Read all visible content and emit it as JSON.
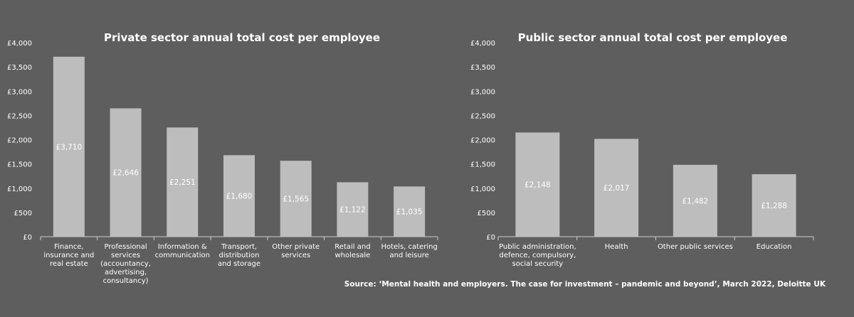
{
  "chart_data": [
    {
      "type": "bar",
      "title": "Private sector annual total cost per employee",
      "categories": [
        "Finance, insurance and real estate",
        "Professional services (accountancy, advertising, consultancy)",
        "Information & communication",
        "Transport, distribution and storage",
        "Other private services",
        "Retail and wholesale",
        "Hotels, catering and leisure"
      ],
      "category_lines": [
        [
          "Finance,",
          "insurance and",
          "real estate"
        ],
        [
          "Professional",
          "services",
          "(accountancy,",
          "advertising,",
          "consultancy)"
        ],
        [
          "Information &",
          "communication"
        ],
        [
          "Transport,",
          "distribution",
          "and storage"
        ],
        [
          "Other private",
          "services"
        ],
        [
          "Retail and",
          "wholesale"
        ],
        [
          "Hotels, catering",
          "and leisure"
        ]
      ],
      "values": [
        3710,
        2646,
        2251,
        1680,
        1565,
        1122,
        1035
      ],
      "data_labels": [
        "£3,710",
        "£2,646",
        "£2,251",
        "£1,680",
        "£1,565",
        "£1,122",
        "£1,035"
      ],
      "yticks": [
        "£0",
        "£500",
        "£1,000",
        "£1,500",
        "£2,000",
        "£2,500",
        "£3,000",
        "£3,500",
        "£4,000"
      ],
      "ylim": [
        0,
        4000
      ],
      "xlabel": "",
      "ylabel": "",
      "grid": false,
      "bar_color": "#bdbdbd"
    },
    {
      "type": "bar",
      "title": "Public sector annual total cost per employee",
      "categories": [
        "Public administration, defence, compulsory, social security",
        "Health",
        "Other public services",
        "Education"
      ],
      "category_lines": [
        [
          "Public administration,",
          "defence, compulsory,",
          "social security"
        ],
        [
          "Health"
        ],
        [
          "Other public services"
        ],
        [
          "Education"
        ]
      ],
      "values": [
        2148,
        2017,
        1482,
        1288
      ],
      "data_labels": [
        "£2,148",
        "£2,017",
        "£1,482",
        "£1,288"
      ],
      "yticks": [
        "£0",
        "£500",
        "£1,000",
        "£1,500",
        "£2,000",
        "£2,500",
        "£3,000",
        "£3,500",
        "£4,000"
      ],
      "ylim": [
        0,
        4000
      ],
      "xlabel": "",
      "ylabel": "",
      "grid": false,
      "bar_color": "#bdbdbd"
    }
  ],
  "source": "Source: ‘Mental health and employers. The case for investment – pandemic and beyond’, March 2022, Deloitte UK",
  "colors": {
    "background": "#5e5e5e",
    "bar": "#bdbdbd",
    "text": "#ffffff",
    "axis": "#cfcfcf"
  }
}
